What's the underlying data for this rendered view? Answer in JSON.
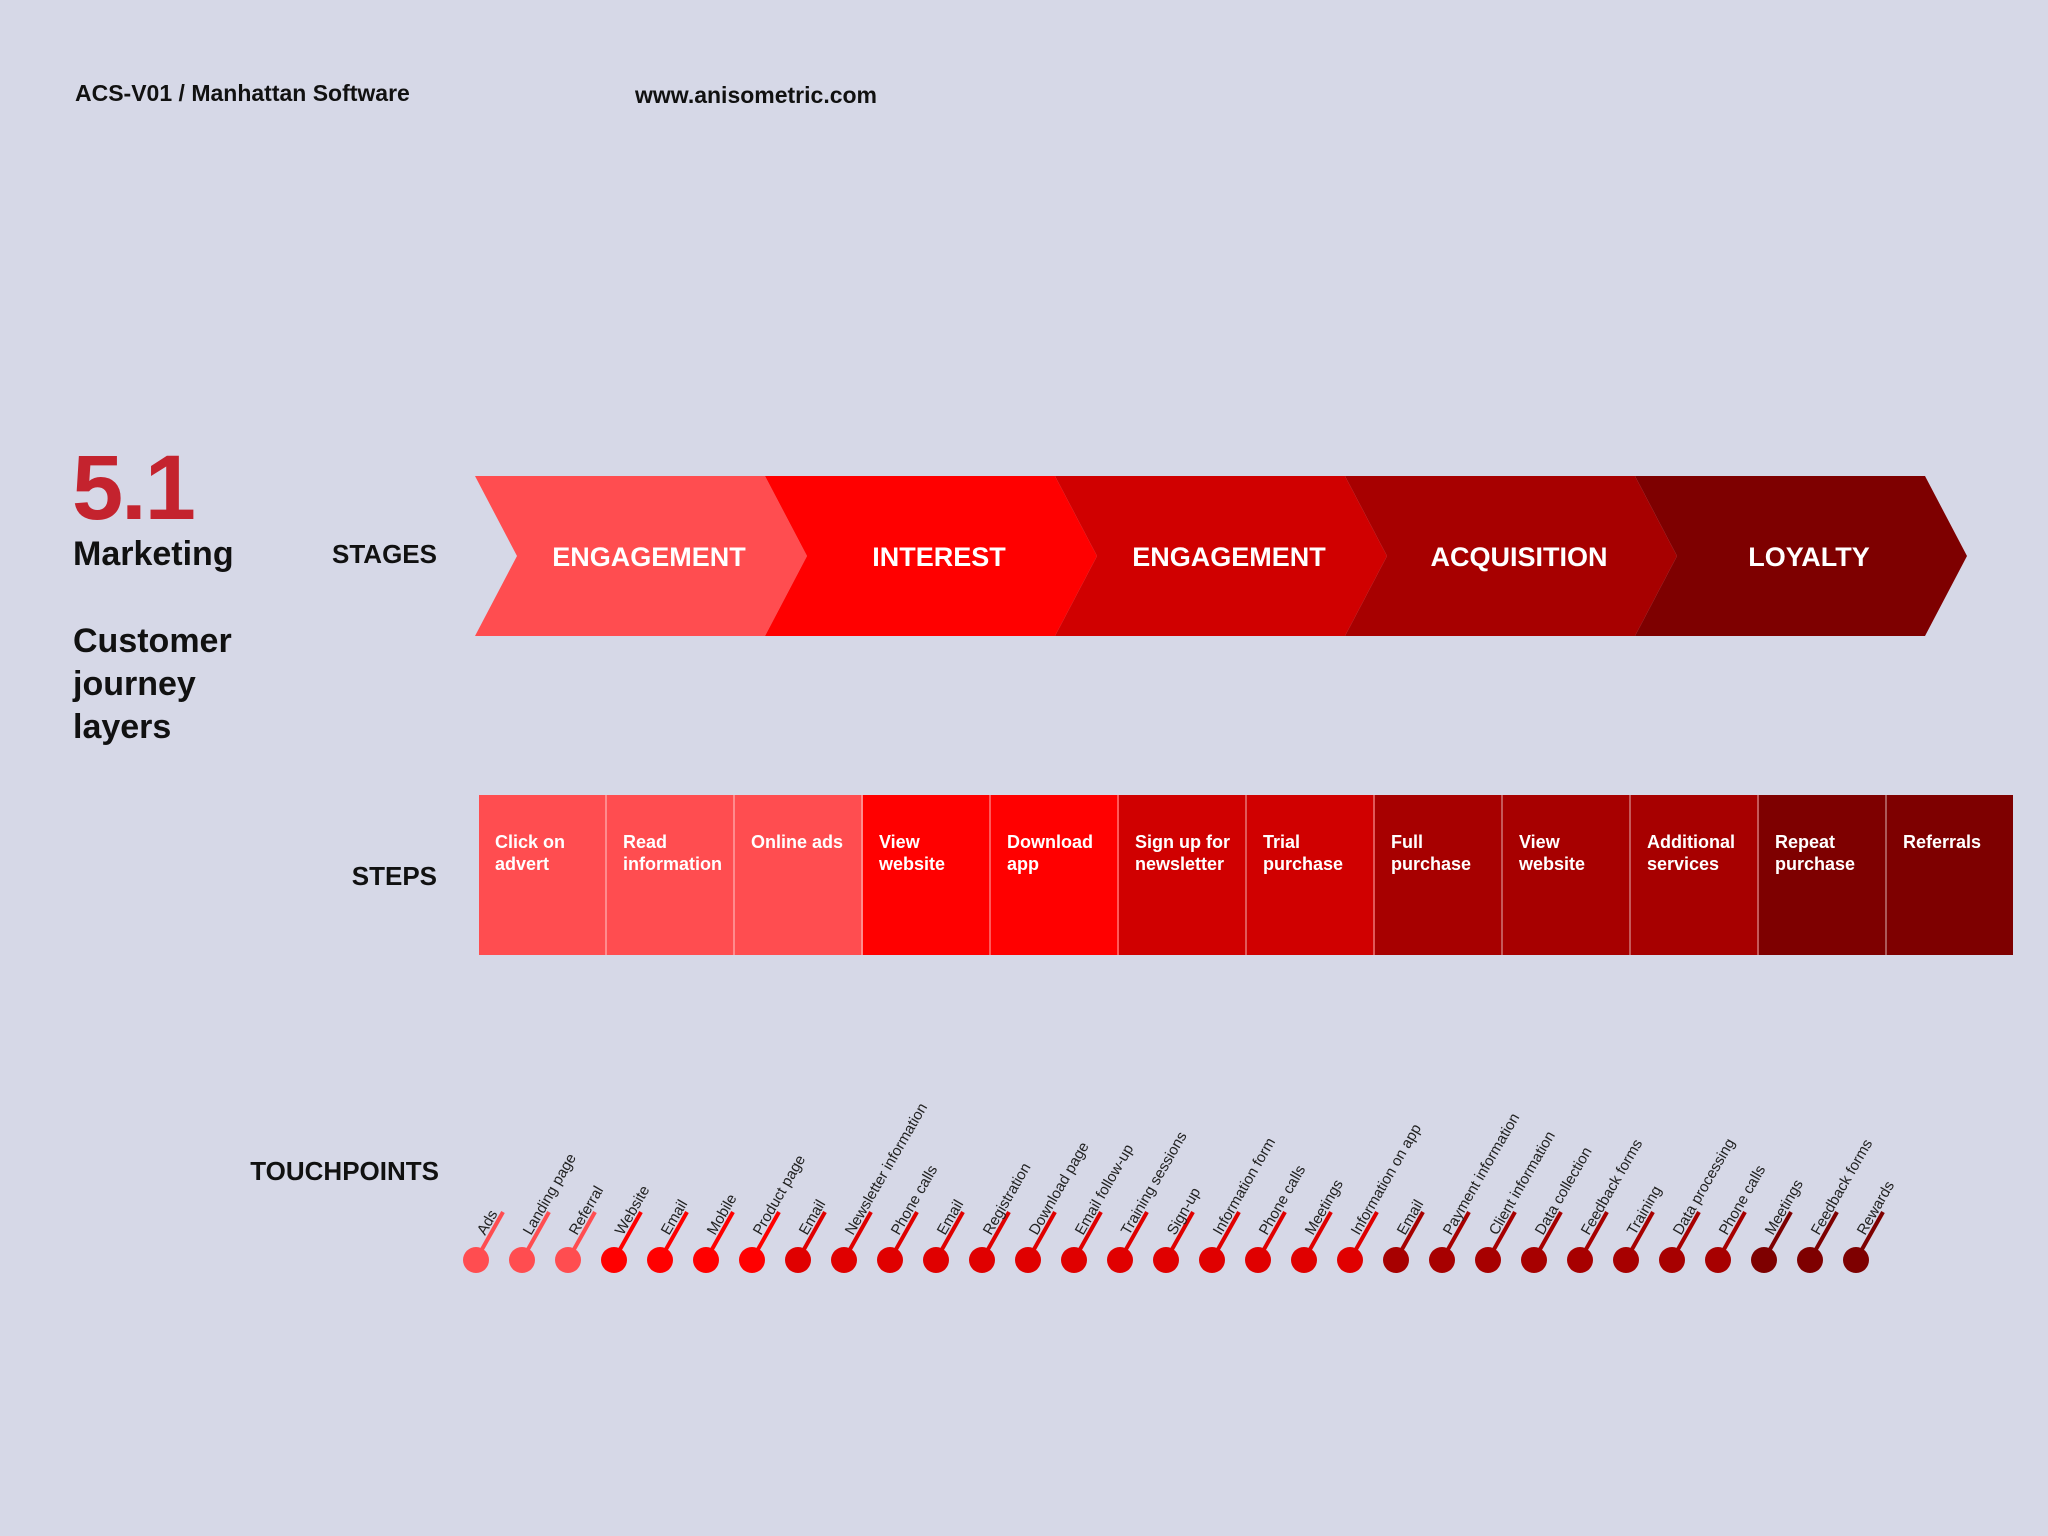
{
  "header": {
    "project": "ACS-V01 / Manhattan Software",
    "website": "www.anisometric.com"
  },
  "section": {
    "number": "5.1",
    "title": "Marketing",
    "subtitle": "Customer journey layers"
  },
  "rows": {
    "stages_label": "STAGES",
    "steps_label": "STEPS",
    "touchpoints_label": "TOUCHPOINTS"
  },
  "stages": [
    {
      "label": "ENGAGEMENT",
      "color": "#ff4d50"
    },
    {
      "label": "INTEREST",
      "color": "#ff0000"
    },
    {
      "label": "ENGAGEMENT",
      "color": "#d00000"
    },
    {
      "label": "ACQUISITION",
      "color": "#a70000"
    },
    {
      "label": "LOYALTY",
      "color": "#7e0000"
    }
  ],
  "steps": [
    {
      "label": "Click on advert",
      "color": "#ff4d50"
    },
    {
      "label": "Read information",
      "color": "#ff4d50"
    },
    {
      "label": "Online ads",
      "color": "#ff4d50"
    },
    {
      "label": "View website",
      "color": "#ff0000"
    },
    {
      "label": "Download app",
      "color": "#ff0000"
    },
    {
      "label": "Sign up for newsletter",
      "color": "#d00000"
    },
    {
      "label": "Trial purchase",
      "color": "#d00000"
    },
    {
      "label": "Full purchase",
      "color": "#a70000"
    },
    {
      "label": "View website",
      "color": "#a70000"
    },
    {
      "label": "Additional services",
      "color": "#a70000"
    },
    {
      "label": "Repeat purchase",
      "color": "#7e0000"
    },
    {
      "label": "Referrals",
      "color": "#7e0000"
    }
  ],
  "touchpoints": [
    {
      "label": "Ads",
      "color": "#ff4d50"
    },
    {
      "label": "Landing page",
      "color": "#ff4d50"
    },
    {
      "label": "Referral",
      "color": "#ff4d50"
    },
    {
      "label": "Website",
      "color": "#ff0000"
    },
    {
      "label": "Email",
      "color": "#ff0000"
    },
    {
      "label": "Mobile",
      "color": "#ff0000"
    },
    {
      "label": "Product page",
      "color": "#ff0000"
    },
    {
      "label": "Email",
      "color": "#e00000"
    },
    {
      "label": "Newsletter information",
      "color": "#e00000"
    },
    {
      "label": "Phone calls",
      "color": "#e00000"
    },
    {
      "label": "Email",
      "color": "#e00000"
    },
    {
      "label": "Registration",
      "color": "#e00000"
    },
    {
      "label": "Download page",
      "color": "#e00000"
    },
    {
      "label": "Email follow-up",
      "color": "#e00000"
    },
    {
      "label": "Training sessions",
      "color": "#e00000"
    },
    {
      "label": "Sign-up",
      "color": "#e00000"
    },
    {
      "label": "Information form",
      "color": "#e00000"
    },
    {
      "label": "Phone calls",
      "color": "#e00000"
    },
    {
      "label": "Meetings",
      "color": "#e00000"
    },
    {
      "label": "Information on app",
      "color": "#e00000"
    },
    {
      "label": "Email",
      "color": "#a70000"
    },
    {
      "label": "Payment information",
      "color": "#a70000"
    },
    {
      "label": "Client information",
      "color": "#a70000"
    },
    {
      "label": "Data collection",
      "color": "#a70000"
    },
    {
      "label": "Feedback forms",
      "color": "#a70000"
    },
    {
      "label": "Training",
      "color": "#a70000"
    },
    {
      "label": "Data processing",
      "color": "#a70000"
    },
    {
      "label": "Phone calls",
      "color": "#a70000"
    },
    {
      "label": "Meetings",
      "color": "#7e0000"
    },
    {
      "label": "Feedback forms",
      "color": "#7e0000"
    },
    {
      "label": "Rewards",
      "color": "#7e0000"
    }
  ]
}
